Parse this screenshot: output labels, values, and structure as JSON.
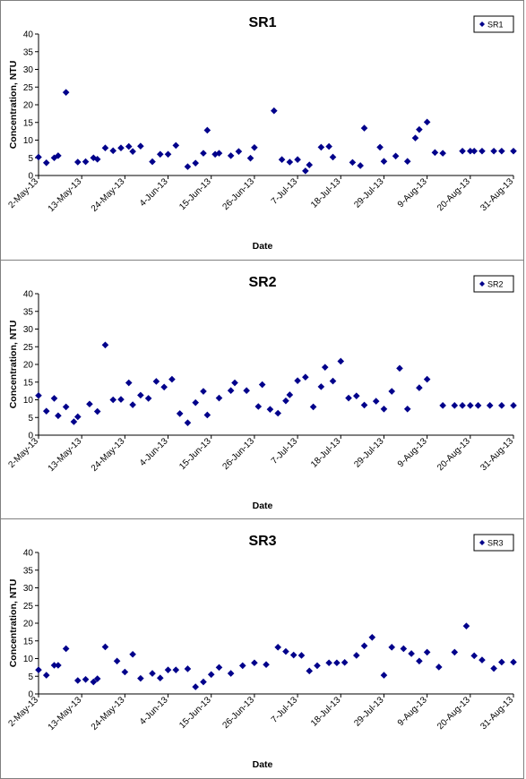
{
  "chart_data": [
    {
      "type": "scatter",
      "title": "SR1",
      "xlabel": "Date",
      "ylabel": "Concentration, NTU",
      "ylim": [
        0,
        40
      ],
      "yticks": [
        0,
        5,
        10,
        15,
        20,
        25,
        30,
        35,
        40
      ],
      "xlim": [
        "2013-05-02",
        "2013-08-31"
      ],
      "xtick_labels": [
        "2-May-13",
        "13-May-13",
        "24-May-13",
        "4-Jun-13",
        "15-Jun-13",
        "26-Jun-13",
        "7-Jul-13",
        "18-Jul-13",
        "29-Jul-13",
        "9-Aug-13",
        "20-Aug-13",
        "31-Aug-13"
      ],
      "grid": false,
      "legend_position": "top-right",
      "marker_color": "#00008b",
      "series": [
        {
          "name": "SR1",
          "x": [
            "2013-05-02",
            "2013-05-04",
            "2013-05-06",
            "2013-05-07",
            "2013-05-09",
            "2013-05-12",
            "2013-05-14",
            "2013-05-16",
            "2013-05-17",
            "2013-05-19",
            "2013-05-21",
            "2013-05-23",
            "2013-05-25",
            "2013-05-26",
            "2013-05-28",
            "2013-05-31",
            "2013-06-02",
            "2013-06-04",
            "2013-06-06",
            "2013-06-09",
            "2013-06-11",
            "2013-06-13",
            "2013-06-14",
            "2013-06-16",
            "2013-06-17",
            "2013-06-20",
            "2013-06-22",
            "2013-06-25",
            "2013-06-26",
            "2013-07-01",
            "2013-07-03",
            "2013-07-05",
            "2013-07-07",
            "2013-07-09",
            "2013-07-10",
            "2013-07-13",
            "2013-07-15",
            "2013-07-16",
            "2013-07-21",
            "2013-07-23",
            "2013-07-24",
            "2013-07-28",
            "2013-07-29",
            "2013-08-01",
            "2013-08-04",
            "2013-08-06",
            "2013-08-07",
            "2013-08-09",
            "2013-08-11",
            "2013-08-13",
            "2013-08-18",
            "2013-08-20",
            "2013-08-21",
            "2013-08-23",
            "2013-08-26",
            "2013-08-28",
            "2013-08-31"
          ],
          "y": [
            5.2,
            3.6,
            5.0,
            5.6,
            23.5,
            3.8,
            3.9,
            5.0,
            4.6,
            7.8,
            7.0,
            7.8,
            8.2,
            6.8,
            8.3,
            3.9,
            6.0,
            6.0,
            8.5,
            2.5,
            3.5,
            6.3,
            12.8,
            6.0,
            6.3,
            5.6,
            6.8,
            4.9,
            7.9,
            18.3,
            4.5,
            3.8,
            4.5,
            1.3,
            3.0,
            8.0,
            8.2,
            5.2,
            3.7,
            2.8,
            13.4,
            8.0,
            4.0,
            5.5,
            4.0,
            10.6,
            13.0,
            15.1,
            6.5,
            6.3,
            6.9,
            6.9,
            6.9,
            6.9,
            6.9,
            6.9,
            6.9
          ]
        }
      ]
    },
    {
      "type": "scatter",
      "title": "SR2",
      "xlabel": "Date",
      "ylabel": "Concentration, NTU",
      "ylim": [
        0,
        40
      ],
      "yticks": [
        0,
        5,
        10,
        15,
        20,
        25,
        30,
        35,
        40
      ],
      "xlim": [
        "2013-05-02",
        "2013-08-31"
      ],
      "xtick_labels": [
        "2-May-13",
        "13-May-13",
        "24-May-13",
        "4-Jun-13",
        "15-Jun-13",
        "26-Jun-13",
        "7-Jul-13",
        "18-Jul-13",
        "29-Jul-13",
        "9-Aug-13",
        "20-Aug-13",
        "31-Aug-13"
      ],
      "grid": false,
      "legend_position": "top-right",
      "marker_color": "#00008b",
      "series": [
        {
          "name": "SR2",
          "x": [
            "2013-05-02",
            "2013-05-04",
            "2013-05-06",
            "2013-05-07",
            "2013-05-09",
            "2013-05-11",
            "2013-05-12",
            "2013-05-15",
            "2013-05-17",
            "2013-05-19",
            "2013-05-21",
            "2013-05-23",
            "2013-05-25",
            "2013-05-26",
            "2013-05-28",
            "2013-05-30",
            "2013-06-01",
            "2013-06-03",
            "2013-06-05",
            "2013-06-07",
            "2013-06-09",
            "2013-06-11",
            "2013-06-13",
            "2013-06-14",
            "2013-06-17",
            "2013-06-20",
            "2013-06-21",
            "2013-06-24",
            "2013-06-27",
            "2013-06-28",
            "2013-06-30",
            "2013-07-02",
            "2013-07-04",
            "2013-07-05",
            "2013-07-07",
            "2013-07-09",
            "2013-07-11",
            "2013-07-13",
            "2013-07-14",
            "2013-07-16",
            "2013-07-18",
            "2013-07-20",
            "2013-07-22",
            "2013-07-24",
            "2013-07-27",
            "2013-07-29",
            "2013-07-31",
            "2013-08-02",
            "2013-08-04",
            "2013-08-07",
            "2013-08-09",
            "2013-08-13",
            "2013-08-16",
            "2013-08-18",
            "2013-08-20",
            "2013-08-22",
            "2013-08-25",
            "2013-08-28",
            "2013-08-31"
          ],
          "y": [
            11.2,
            6.8,
            10.4,
            5.5,
            8.0,
            3.8,
            5.2,
            8.8,
            6.7,
            25.5,
            10.0,
            10.1,
            14.8,
            8.6,
            11.3,
            10.4,
            15.2,
            13.6,
            15.8,
            6.1,
            3.5,
            9.2,
            12.4,
            5.7,
            10.5,
            12.6,
            14.8,
            12.6,
            8.1,
            14.3,
            7.3,
            6.2,
            9.7,
            11.4,
            15.4,
            16.4,
            8.0,
            13.7,
            19.2,
            15.3,
            20.9,
            10.5,
            11.1,
            8.5,
            9.6,
            7.4,
            12.4,
            18.9,
            7.4,
            13.4,
            15.8,
            8.4,
            8.4,
            8.4,
            8.4,
            8.4,
            8.4,
            8.4,
            8.4
          ]
        }
      ]
    },
    {
      "type": "scatter",
      "title": "SR3",
      "xlabel": "Date",
      "ylabel": "Concentration, NTU",
      "ylim": [
        0,
        40
      ],
      "yticks": [
        0,
        5,
        10,
        15,
        20,
        25,
        30,
        35,
        40
      ],
      "xlim": [
        "2013-05-02",
        "2013-08-31"
      ],
      "xtick_labels": [
        "2-May-13",
        "13-May-13",
        "24-May-13",
        "4-Jun-13",
        "15-Jun-13",
        "26-Jun-13",
        "7-Jul-13",
        "18-Jul-13",
        "29-Jul-13",
        "9-Aug-13",
        "20-Aug-13",
        "31-Aug-13"
      ],
      "grid": false,
      "legend_position": "top-right",
      "marker_color": "#00008b",
      "series": [
        {
          "name": "SR3",
          "x": [
            "2013-05-02",
            "2013-05-04",
            "2013-05-06",
            "2013-05-07",
            "2013-05-09",
            "2013-05-12",
            "2013-05-14",
            "2013-05-16",
            "2013-05-17",
            "2013-05-19",
            "2013-05-22",
            "2013-05-24",
            "2013-05-26",
            "2013-05-28",
            "2013-05-31",
            "2013-06-02",
            "2013-06-04",
            "2013-06-06",
            "2013-06-09",
            "2013-06-11",
            "2013-06-13",
            "2013-06-15",
            "2013-06-17",
            "2013-06-20",
            "2013-06-23",
            "2013-06-26",
            "2013-06-29",
            "2013-07-02",
            "2013-07-04",
            "2013-07-06",
            "2013-07-08",
            "2013-07-10",
            "2013-07-12",
            "2013-07-15",
            "2013-07-17",
            "2013-07-19",
            "2013-07-22",
            "2013-07-24",
            "2013-07-26",
            "2013-07-29",
            "2013-07-31",
            "2013-08-03",
            "2013-08-05",
            "2013-08-07",
            "2013-08-09",
            "2013-08-12",
            "2013-08-16",
            "2013-08-19",
            "2013-08-21",
            "2013-08-23",
            "2013-08-26",
            "2013-08-28",
            "2013-08-31"
          ],
          "y": [
            6.8,
            5.3,
            8.1,
            8.1,
            12.8,
            3.8,
            4.1,
            3.4,
            4.3,
            13.3,
            9.3,
            6.2,
            11.2,
            4.4,
            5.8,
            4.5,
            6.8,
            6.8,
            7.1,
            2.0,
            3.4,
            5.5,
            7.5,
            5.8,
            8.0,
            8.8,
            8.3,
            13.2,
            12.0,
            11.0,
            10.9,
            6.5,
            8.0,
            8.8,
            8.8,
            8.9,
            10.9,
            13.6,
            16.0,
            5.3,
            13.2,
            12.8,
            11.4,
            9.3,
            11.8,
            7.6,
            11.8,
            19.2,
            10.8,
            9.6,
            7.2,
            9.0,
            9.0
          ]
        }
      ]
    }
  ]
}
